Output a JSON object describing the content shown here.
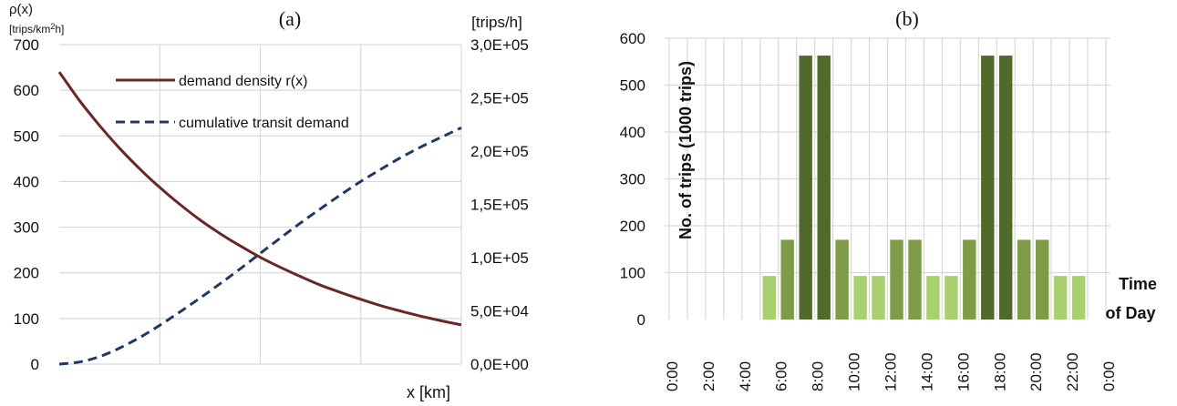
{
  "chart_data": [
    {
      "type": "line",
      "panel_label": "(a)",
      "xlabel": "x [km]",
      "ylabel_symbol": "ρ(x)",
      "ylabel_unit_prefix": "[trips/km",
      "ylabel_unit_sup": "2",
      "ylabel_unit_suffix": "h]",
      "y2label": "[trips/h]",
      "ylim": [
        0,
        700
      ],
      "y_ticks": [
        "0",
        "100",
        "200",
        "300",
        "400",
        "500",
        "600",
        "700"
      ],
      "y2lim": [
        0,
        300000
      ],
      "y2_ticks": [
        "0,0E+00",
        "5,0E+04",
        "1,0E+05",
        "1,5E+05",
        "2,0E+05",
        "2,5E+05",
        "3,0E+05"
      ],
      "x_range": [
        0,
        20
      ],
      "x_gridlines": [
        5,
        10,
        15,
        20
      ],
      "grid": true,
      "legend_position": "top-center",
      "series": [
        {
          "name": "demand density r(x)",
          "axis": "left",
          "color": "#6b2626",
          "style": "solid",
          "x": [
            0,
            1,
            2,
            3,
            4,
            5,
            6,
            7,
            8,
            9,
            10,
            11,
            12,
            13,
            14,
            15,
            16,
            17,
            18,
            19,
            20
          ],
          "y": [
            640,
            578,
            523,
            473,
            428,
            387,
            350,
            316,
            286,
            259,
            234,
            212,
            192,
            173,
            157,
            142,
            128,
            116,
            105,
            95,
            86
          ]
        },
        {
          "name": "cumulative transit demand",
          "axis": "right",
          "color": "#1f3864",
          "style": "dashed",
          "x": [
            0,
            1,
            2,
            3,
            4,
            5,
            6,
            7,
            8,
            9,
            10,
            11,
            12,
            13,
            14,
            15,
            16,
            17,
            18,
            19,
            20
          ],
          "y": [
            0,
            2000,
            7000,
            15000,
            25000,
            36500,
            49000,
            62000,
            75500,
            89500,
            104000,
            118500,
            132500,
            146000,
            159000,
            171500,
            183000,
            194000,
            204000,
            213000,
            222000
          ]
        }
      ]
    },
    {
      "type": "bar",
      "panel_label": "(b)",
      "ylabel": "No. of trips (1000 trips)",
      "xlabel_line1": "Time",
      "xlabel_line2": "of Day",
      "ylim": [
        0,
        600
      ],
      "y_ticks": [
        "0",
        "100",
        "200",
        "300",
        "400",
        "500",
        "600"
      ],
      "grid": true,
      "categories": [
        "0:00",
        "1:00",
        "2:00",
        "3:00",
        "4:00",
        "5:00",
        "6:00",
        "7:00",
        "8:00",
        "9:00",
        "10:00",
        "11:00",
        "12:00",
        "13:00",
        "14:00",
        "15:00",
        "16:00",
        "17:00",
        "18:00",
        "19:00",
        "20:00",
        "21:00",
        "22:00",
        "23:00"
      ],
      "x_tick_labels": [
        "0:00",
        "2:00",
        "4:00",
        "6:00",
        "8:00",
        "10:00",
        "12:00",
        "14:00",
        "16:00",
        "18:00",
        "20:00",
        "22:00",
        "0:00"
      ],
      "values": [
        0,
        0,
        0,
        0,
        0,
        93,
        170,
        563,
        563,
        170,
        93,
        93,
        170,
        170,
        93,
        93,
        170,
        563,
        563,
        170,
        170,
        93,
        93,
        0
      ],
      "colors": {
        "low": "#a9cf6e",
        "mid": "#7e9c47",
        "peak": "#4f6a2b"
      }
    }
  ]
}
